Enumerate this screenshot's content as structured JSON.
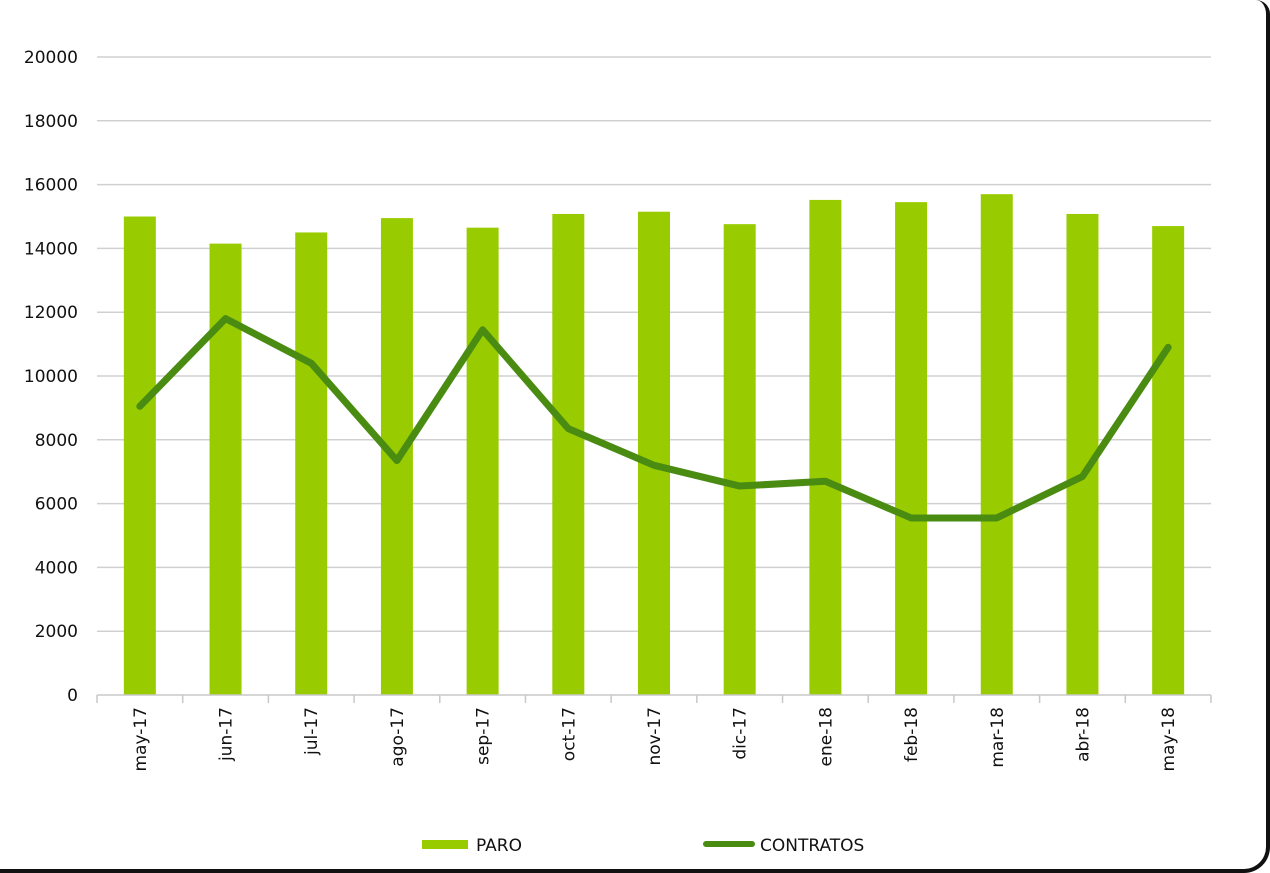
{
  "chart_data": {
    "type": "bar",
    "title": "",
    "xlabel": "",
    "ylabel": "",
    "categories": [
      "may-17",
      "jun-17",
      "jul-17",
      "ago-17",
      "sep-17",
      "oct-17",
      "nov-17",
      "dic-17",
      "ene-18",
      "feb-18",
      "mar-18",
      "abr-18",
      "may-18"
    ],
    "ylim": [
      0,
      20000
    ],
    "yticks": [
      "0",
      "2000",
      "4000",
      "6000",
      "8000",
      "10000",
      "12000",
      "14000",
      "16000",
      "18000",
      "20000"
    ],
    "grid": true,
    "legend_position": "bottom",
    "series": [
      {
        "name": "PARO",
        "type": "bar",
        "color": "#99cc00",
        "values": [
          15000,
          14150,
          14500,
          14950,
          14650,
          15080,
          15150,
          14760,
          15520,
          15450,
          15700,
          15080,
          14700
        ]
      },
      {
        "name": "CONTRATOS",
        "type": "line",
        "color": "#4a8c12",
        "values": [
          9050,
          11800,
          10400,
          7350,
          11450,
          8350,
          7200,
          6550,
          6700,
          5550,
          5550,
          6850,
          10900
        ]
      }
    ]
  }
}
